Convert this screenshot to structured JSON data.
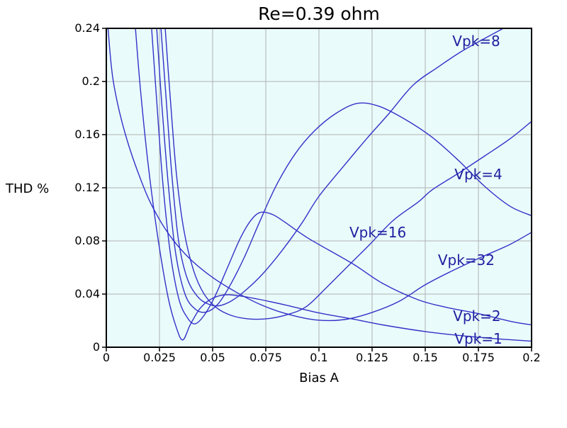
{
  "chart_data": {
    "type": "line",
    "title": "Re=0.39 ohm",
    "xlabel": "Bias A",
    "ylabel": "THD %",
    "xlim": [
      0,
      0.2
    ],
    "ylim": [
      0,
      0.24
    ],
    "grid": true,
    "legend_position": "inline-labels-on-curves",
    "colors": {
      "curve": "#3232c8",
      "series_label": "#2020a0",
      "grid": "#b0b0b0",
      "plot_bg": "#eafbfb",
      "border": "#000000",
      "text": "#000000",
      "page_bg": "#ffffff"
    },
    "xticks": {
      "values": [
        0,
        0.025,
        0.05,
        0.075,
        0.1,
        0.125,
        0.15,
        0.175,
        0.2
      ],
      "labels": [
        "0",
        "0.025",
        "0.05",
        "0.075",
        "0.1",
        "0.125",
        "0.15",
        "0.175",
        "0.2"
      ]
    },
    "yticks": {
      "values": [
        0,
        0.04,
        0.08,
        0.12,
        0.16,
        0.2,
        0.24
      ],
      "labels": [
        "0",
        "0.04",
        "0.08",
        "0.12",
        "0.16",
        "0.2",
        "0.24"
      ]
    },
    "series": [
      {
        "name": "Vpk=1",
        "label_pos": {
          "x": 0.175,
          "y": 0.0064
        },
        "points": [
          [
            0.0137,
            0.24
          ],
          [
            0.016,
            0.195
          ],
          [
            0.0195,
            0.14
          ],
          [
            0.024,
            0.085
          ],
          [
            0.029,
            0.038
          ],
          [
            0.033,
            0.0145
          ],
          [
            0.036,
            0.0055
          ],
          [
            0.0395,
            0.017
          ],
          [
            0.044,
            0.029
          ],
          [
            0.049,
            0.036
          ],
          [
            0.055,
            0.0393
          ],
          [
            0.062,
            0.0388
          ],
          [
            0.072,
            0.036
          ],
          [
            0.085,
            0.0315
          ],
          [
            0.1,
            0.0258
          ],
          [
            0.115,
            0.0215
          ],
          [
            0.13,
            0.0168
          ],
          [
            0.15,
            0.0118
          ],
          [
            0.17,
            0.0082
          ],
          [
            0.185,
            0.0062
          ],
          [
            0.2,
            0.0046
          ]
        ]
      },
      {
        "name": "Vpk=2",
        "label_pos": {
          "x": 0.1743,
          "y": 0.0235
        },
        "points": [
          [
            0.0213,
            0.24
          ],
          [
            0.0235,
            0.19
          ],
          [
            0.0265,
            0.125
          ],
          [
            0.03,
            0.072
          ],
          [
            0.034,
            0.037
          ],
          [
            0.038,
            0.0225
          ],
          [
            0.0417,
            0.0176
          ],
          [
            0.046,
            0.024
          ],
          [
            0.051,
            0.038
          ],
          [
            0.057,
            0.06
          ],
          [
            0.063,
            0.082
          ],
          [
            0.068,
            0.0955
          ],
          [
            0.0725,
            0.1015
          ],
          [
            0.078,
            0.1
          ],
          [
            0.0833,
            0.0949
          ],
          [
            0.095,
            0.082
          ],
          [
            0.1157,
            0.063
          ],
          [
            0.13,
            0.048
          ],
          [
            0.1467,
            0.0357
          ],
          [
            0.16,
            0.03
          ],
          [
            0.175,
            0.0253
          ],
          [
            0.19,
            0.0195
          ],
          [
            0.2,
            0.0168
          ]
        ]
      },
      {
        "name": "Vpk=4",
        "label_pos": {
          "x": 0.175,
          "y": 0.1301
        },
        "points": [
          [
            0.0237,
            0.24
          ],
          [
            0.026,
            0.185
          ],
          [
            0.029,
            0.125
          ],
          [
            0.0325,
            0.072
          ],
          [
            0.037,
            0.04
          ],
          [
            0.042,
            0.0285
          ],
          [
            0.047,
            0.0265
          ],
          [
            0.0525,
            0.0325
          ],
          [
            0.058,
            0.046
          ],
          [
            0.065,
            0.068
          ],
          [
            0.072,
            0.094
          ],
          [
            0.08,
            0.122
          ],
          [
            0.089,
            0.146
          ],
          [
            0.098,
            0.163
          ],
          [
            0.108,
            0.176
          ],
          [
            0.118,
            0.1835
          ],
          [
            0.128,
            0.1815
          ],
          [
            0.14,
            0.172
          ],
          [
            0.1533,
            0.158
          ],
          [
            0.166,
            0.14
          ],
          [
            0.178,
            0.121
          ],
          [
            0.19,
            0.106
          ],
          [
            0.2,
            0.099
          ]
        ]
      },
      {
        "name": "Vpk=8",
        "label_pos": {
          "x": 0.174,
          "y": 0.2304
        },
        "points": [
          [
            0.0257,
            0.24
          ],
          [
            0.028,
            0.19
          ],
          [
            0.0308,
            0.13
          ],
          [
            0.034,
            0.08
          ],
          [
            0.038,
            0.052
          ],
          [
            0.043,
            0.038
          ],
          [
            0.048,
            0.0325
          ],
          [
            0.053,
            0.0312
          ],
          [
            0.059,
            0.035
          ],
          [
            0.066,
            0.0435
          ],
          [
            0.074,
            0.056
          ],
          [
            0.083,
            0.0735
          ],
          [
            0.092,
            0.0935
          ],
          [
            0.1,
            0.1136
          ],
          [
            0.112,
            0.137
          ],
          [
            0.123,
            0.158
          ],
          [
            0.133,
            0.176
          ],
          [
            0.1443,
            0.1973
          ],
          [
            0.1557,
            0.2105
          ],
          [
            0.168,
            0.2235
          ],
          [
            0.1867,
            0.24
          ]
        ]
      },
      {
        "name": "Vpk=16",
        "label_pos": {
          "x": 0.1277,
          "y": 0.0864
        },
        "points": [
          [
            0.0277,
            0.24
          ],
          [
            0.0302,
            0.185
          ],
          [
            0.033,
            0.13
          ],
          [
            0.0365,
            0.088
          ],
          [
            0.041,
            0.058
          ],
          [
            0.046,
            0.04
          ],
          [
            0.052,
            0.0295
          ],
          [
            0.059,
            0.0238
          ],
          [
            0.067,
            0.0213
          ],
          [
            0.076,
            0.0215
          ],
          [
            0.085,
            0.0245
          ],
          [
            0.094,
            0.0305
          ],
          [
            0.1033,
            0.0445
          ],
          [
            0.113,
            0.06
          ],
          [
            0.1237,
            0.077
          ],
          [
            0.135,
            0.0955
          ],
          [
            0.1467,
            0.1093
          ],
          [
            0.1533,
            0.1185
          ],
          [
            0.1657,
            0.131
          ],
          [
            0.178,
            0.144
          ],
          [
            0.19,
            0.157
          ],
          [
            0.2,
            0.17
          ]
        ]
      },
      {
        "name": "Vpk=32",
        "label_pos": {
          "x": 0.1693,
          "y": 0.0656
        },
        "points": [
          [
            0.0008,
            0.24
          ],
          [
            0.0033,
            0.2
          ],
          [
            0.009,
            0.16
          ],
          [
            0.0177,
            0.12
          ],
          [
            0.0245,
            0.0975
          ],
          [
            0.0315,
            0.0805
          ],
          [
            0.04,
            0.0655
          ],
          [
            0.05,
            0.0525
          ],
          [
            0.061,
            0.0415
          ],
          [
            0.072,
            0.0325
          ],
          [
            0.084,
            0.0255
          ],
          [
            0.0983,
            0.0206
          ],
          [
            0.112,
            0.0208
          ],
          [
            0.125,
            0.0262
          ],
          [
            0.1377,
            0.0345
          ],
          [
            0.15,
            0.047
          ],
          [
            0.1633,
            0.058
          ],
          [
            0.1767,
            0.068
          ],
          [
            0.19,
            0.0775
          ],
          [
            0.2,
            0.0865
          ]
        ]
      }
    ]
  }
}
